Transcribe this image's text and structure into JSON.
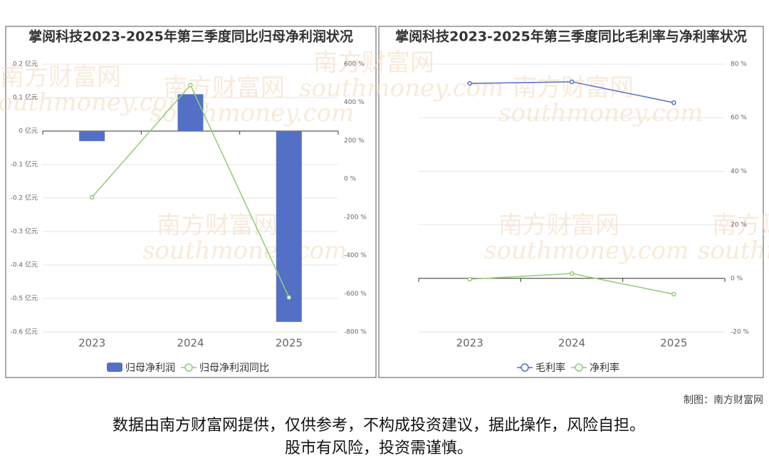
{
  "chart_data": [
    {
      "type": "combo",
      "title": "掌阅科技2023-2025年第三季度同比归母净利润状况",
      "categories": [
        "2023",
        "2024",
        "2025"
      ],
      "series": [
        {
          "name": "归母净利润",
          "type": "bar",
          "color": "#5470c6",
          "values": [
            -0.03,
            0.11,
            -0.57
          ]
        },
        {
          "name": "归母净利润同比",
          "type": "line",
          "axis": "y2",
          "color": "#91cc75",
          "values": [
            -96,
            490,
            -620
          ]
        }
      ],
      "ylim": [
        -0.6,
        0.2
      ],
      "yticks": [
        {
          "value": -0.6,
          "label": "-0.6 亿元"
        },
        {
          "value": -0.5,
          "label": "-0.5 亿元"
        },
        {
          "value": -0.4,
          "label": "-0.4 亿元"
        },
        {
          "value": -0.3,
          "label": "-0.3 亿元"
        },
        {
          "value": -0.2,
          "label": "-0.2 亿元"
        },
        {
          "value": -0.1,
          "label": "-0.1 亿元"
        },
        {
          "value": 0,
          "label": "0 亿元"
        },
        {
          "value": 0.1,
          "label": "0.1 亿元"
        },
        {
          "value": 0.2,
          "label": "0.2 亿元"
        }
      ],
      "y2lim": [
        -800,
        600
      ],
      "y2ticks": [
        {
          "value": -800,
          "label": "-800 %"
        },
        {
          "value": -600,
          "label": "-600 %"
        },
        {
          "value": -400,
          "label": "-400 %"
        },
        {
          "value": -200,
          "label": "-200 %"
        },
        {
          "value": 0,
          "label": "0 %"
        },
        {
          "value": 200,
          "label": "200 %"
        },
        {
          "value": 400,
          "label": "400 %"
        },
        {
          "value": 600,
          "label": "600 %"
        }
      ],
      "grid": true
    },
    {
      "type": "line",
      "title": "掌阅科技2023-2025年第三季度同比毛利率与净利率状况",
      "categories": [
        "2023",
        "2024",
        "2025"
      ],
      "series": [
        {
          "name": "毛利率",
          "type": "line",
          "axis": "y2",
          "color": "#5470c6",
          "values": [
            72.8,
            73.4,
            65.6
          ]
        },
        {
          "name": "净利率",
          "type": "line",
          "axis": "y2",
          "color": "#91cc75",
          "values": [
            -0.3,
            1.8,
            -5.9
          ]
        }
      ],
      "y2lim": [
        -20,
        80
      ],
      "y2ticks": [
        {
          "value": -20,
          "label": "-20 %"
        },
        {
          "value": 0,
          "label": "0 %"
        },
        {
          "value": 20,
          "label": "20 %"
        },
        {
          "value": 40,
          "label": "40 %"
        },
        {
          "value": 60,
          "label": "60 %"
        },
        {
          "value": 80,
          "label": "80 %"
        }
      ],
      "grid": true
    }
  ],
  "watermark": [
    "南方财富网",
    "southmoney.com"
  ],
  "credit": "制图：南方财富网",
  "disclaimer": [
    "数据由南方财富网提供，仅供参考，不构成投资建议，据此操作，风险自担。",
    "股市有风险，投资需谨慎。"
  ]
}
